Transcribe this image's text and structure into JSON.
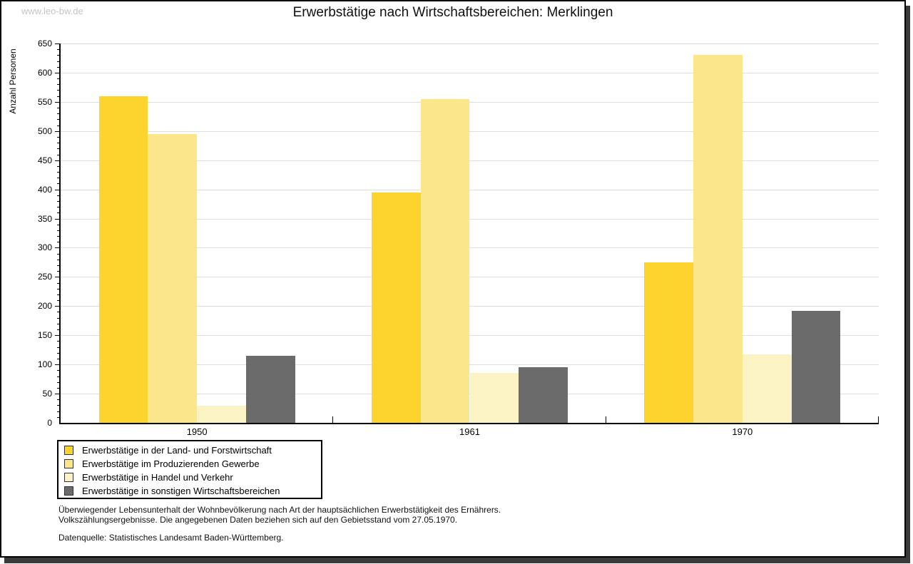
{
  "watermark": "www.leo-bw.de",
  "title": "Erwerbstätige nach Wirtschaftsbereichen: Merklingen",
  "notes": {
    "line1": "Überwiegender Lebensunterhalt der Wohnbevölkerung nach Art der hauptsächlichen Erwerbstätigkeit des Ernährers.",
    "line2": "Volkszählungsergebnisse. Die angegebenen Daten beziehen sich auf den Gebietsstand vom 27.05.1970.",
    "source": "Datenquelle: Statistisches Landesamt Baden-Württemberg."
  },
  "chart_data": {
    "type": "bar",
    "title": "Erwerbstätige nach Wirtschaftsbereichen: Merklingen",
    "categories": [
      "1950",
      "1961",
      "1970"
    ],
    "series": [
      {
        "name": "Erwerbstätige in der Land- und Forstwirtschaft",
        "color": "#FDD32E",
        "values": [
          560,
          395,
          275
        ]
      },
      {
        "name": "Erwerbstätige im Produzierenden Gewerbe",
        "color": "#FBE789",
        "values": [
          495,
          555,
          630
        ]
      },
      {
        "name": "Erwerbstätige in Handel und Verkehr",
        "color": "#FCF3C4",
        "values": [
          29,
          86,
          117
        ]
      },
      {
        "name": "Erwerbstätige in sonstigen Wirtschaftsbereichen",
        "color": "#6B6B6B",
        "values": [
          115,
          95,
          192
        ]
      }
    ],
    "xlabel": "",
    "ylabel": "Anzahl Personen",
    "ylim": [
      0,
      650
    ],
    "ytick_step": 50,
    "yminor_step": 10,
    "grid": true,
    "legend_position": "bottom-left"
  },
  "colors": {
    "grid": "#DFDFDF",
    "axis": "#000000",
    "watermark": "#C4C4C4"
  }
}
